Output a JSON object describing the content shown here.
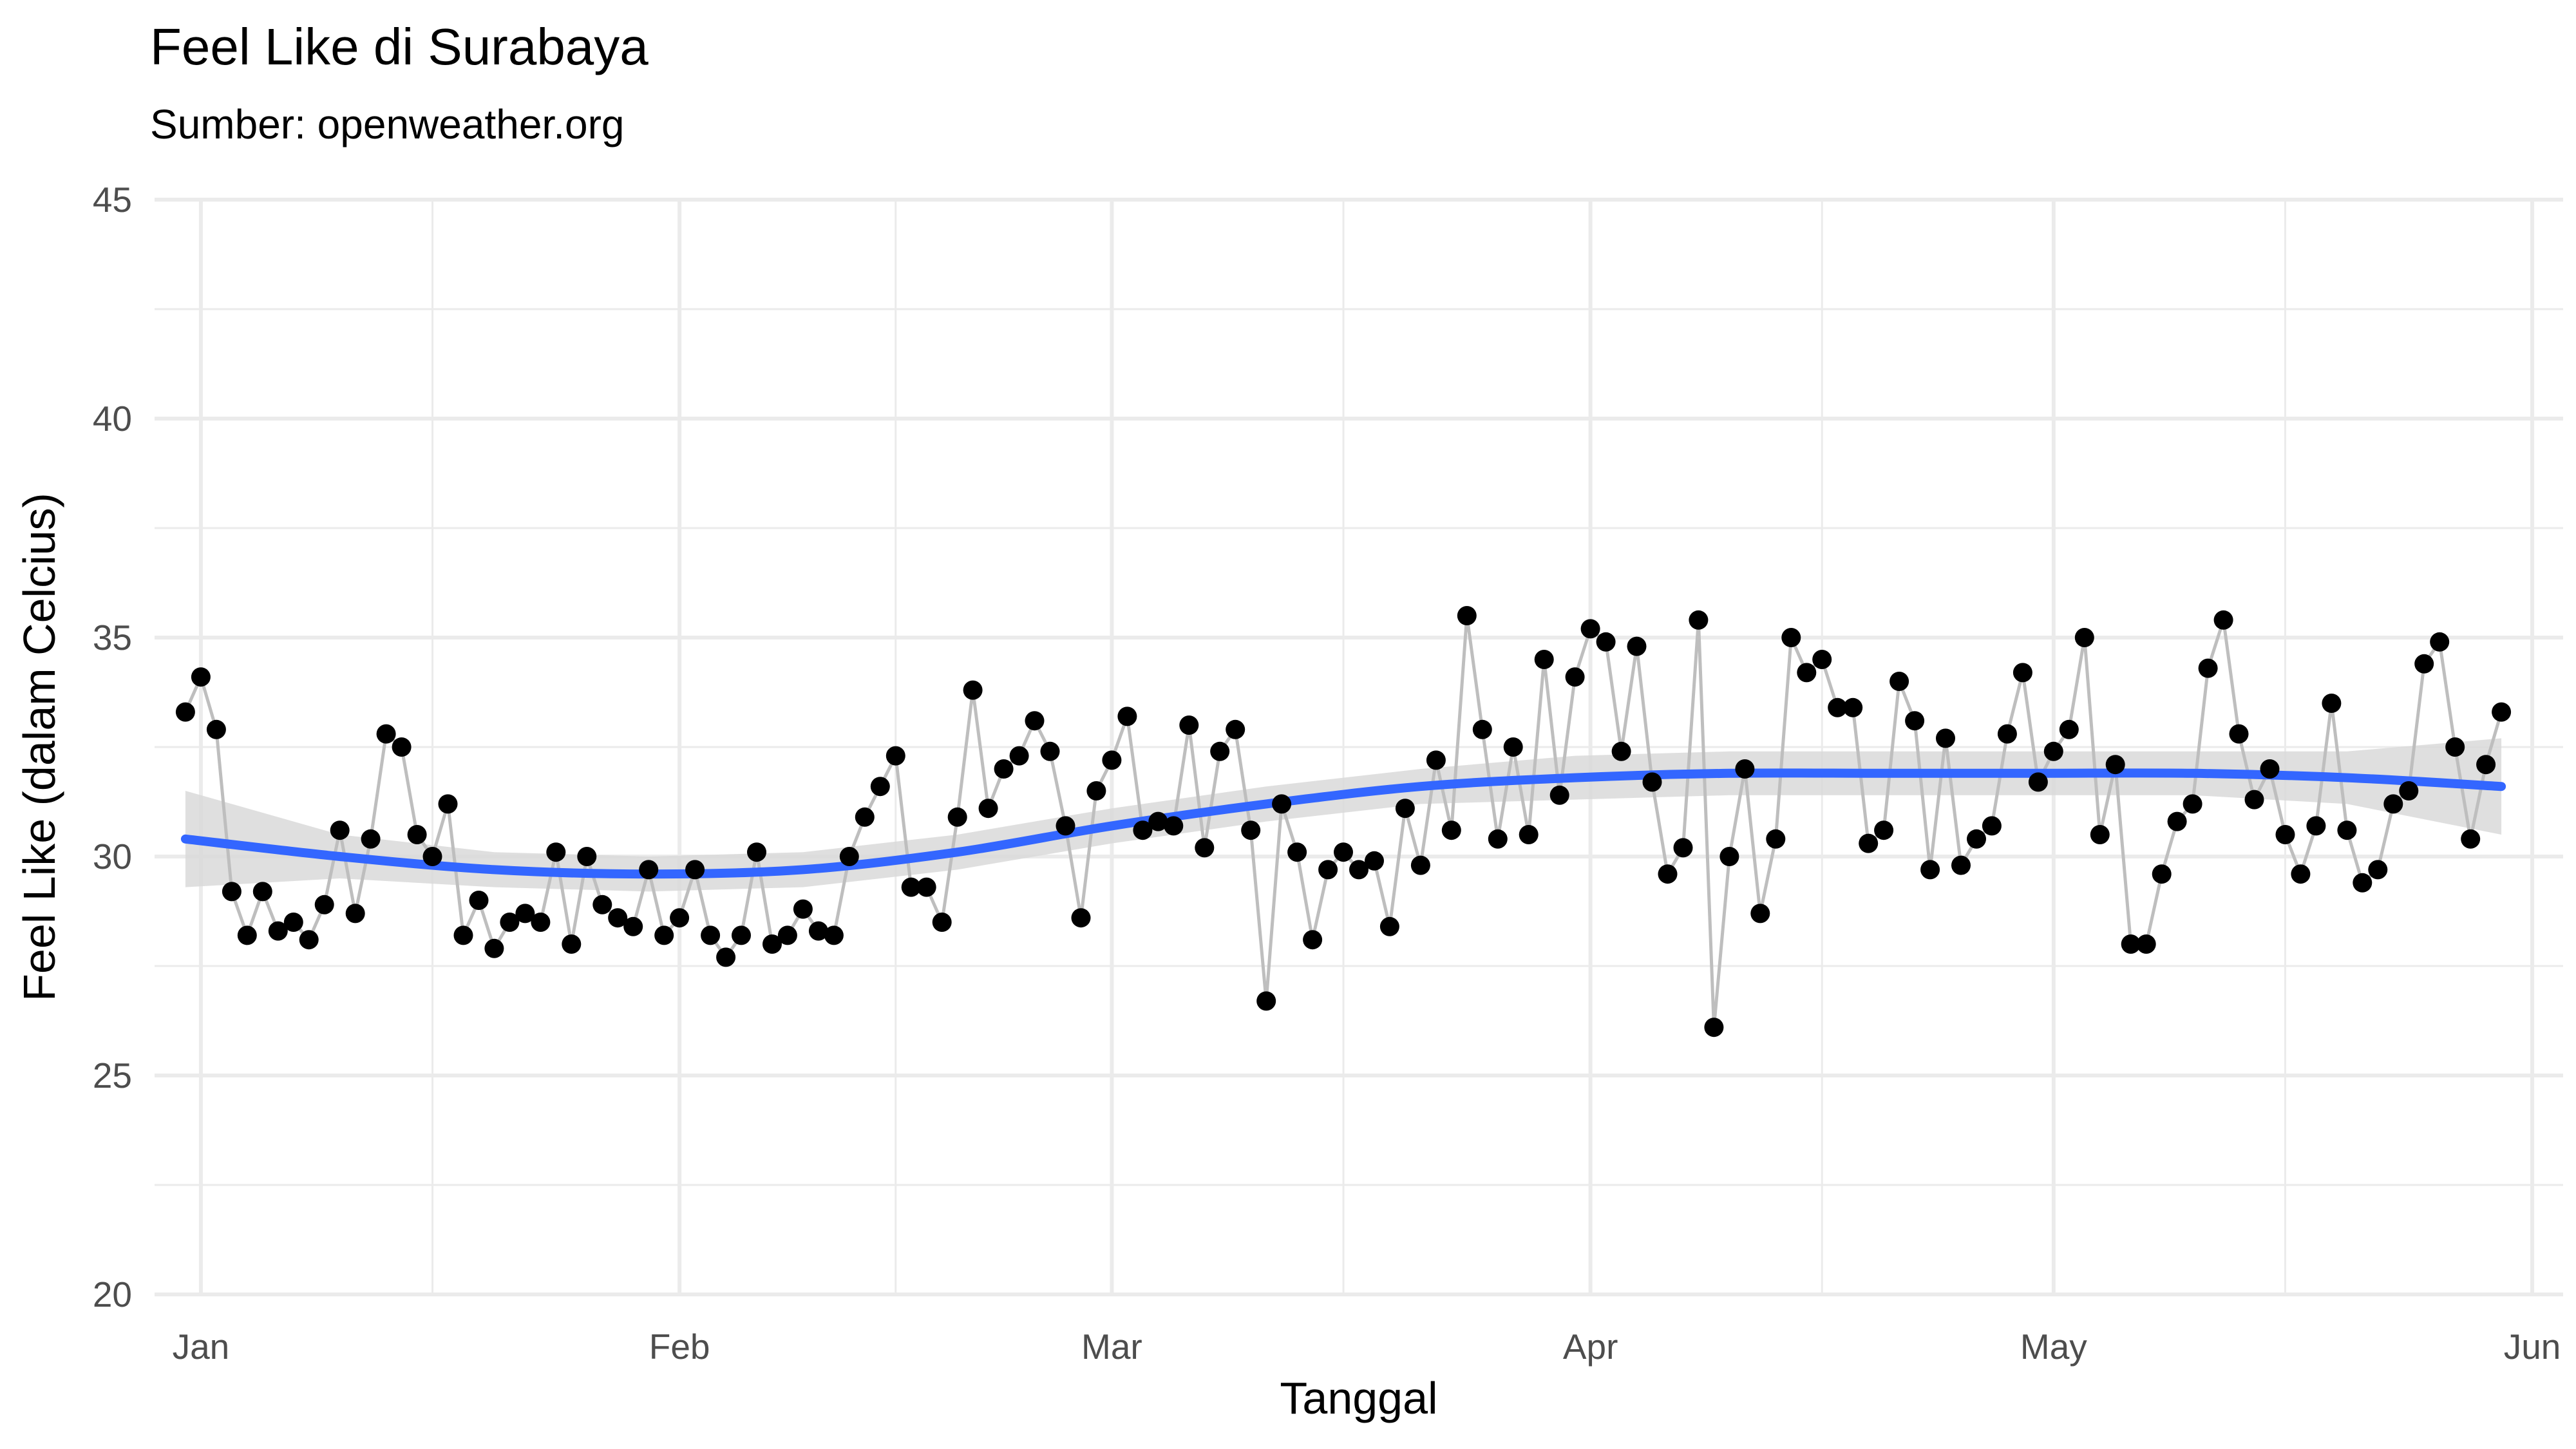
{
  "chart_data": {
    "type": "line",
    "title": "Feel Like di Surabaya",
    "subtitle": "Sumber: openweather.org",
    "xlabel": "Tanggal",
    "ylabel": "Feel Like (dalam Celcius)",
    "ylim": [
      20,
      45
    ],
    "xlim": [
      "2020-12-29",
      "2021-06-03"
    ],
    "x_ticks": [
      {
        "date": "2021-01-01",
        "label": "Jan"
      },
      {
        "date": "2021-02-01",
        "label": "Feb"
      },
      {
        "date": "2021-03-01",
        "label": "Mar"
      },
      {
        "date": "2021-04-01",
        "label": "Apr"
      },
      {
        "date": "2021-05-01",
        "label": "May"
      },
      {
        "date": "2021-06-01",
        "label": "Jun"
      }
    ],
    "x_minor_ticks": [
      "2021-01-16",
      "2021-02-15",
      "2021-03-16",
      "2021-04-16",
      "2021-05-16"
    ],
    "y_ticks": [
      20,
      25,
      30,
      35,
      40,
      45
    ],
    "y_minor_ticks": [
      22.5,
      27.5,
      32.5,
      37.5,
      42.5
    ],
    "grid": true,
    "colors": {
      "points": "#000000",
      "line": "#bebebe",
      "smooth": "#3366ff",
      "band": "#d9d9d9",
      "grid": "#ebebeb",
      "text": "#000000",
      "tick_text": "#4d4d4d"
    },
    "series": [
      {
        "type": "line+points",
        "x": [
          "2020-12-31",
          "2021-01-01",
          "2021-01-02",
          "2021-01-03",
          "2021-01-04",
          "2021-01-05",
          "2021-01-06",
          "2021-01-07",
          "2021-01-08",
          "2021-01-09",
          "2021-01-10",
          "2021-01-11",
          "2021-01-12",
          "2021-01-13",
          "2021-01-14",
          "2021-01-15",
          "2021-01-16",
          "2021-01-17",
          "2021-01-18",
          "2021-01-19",
          "2021-01-20",
          "2021-01-21",
          "2021-01-22",
          "2021-01-23",
          "2021-01-24",
          "2021-01-25",
          "2021-01-26",
          "2021-01-27",
          "2021-01-28",
          "2021-01-29",
          "2021-01-30",
          "2021-01-31",
          "2021-02-01",
          "2021-02-02",
          "2021-02-03",
          "2021-02-04",
          "2021-02-05",
          "2021-02-06",
          "2021-02-07",
          "2021-02-08",
          "2021-02-09",
          "2021-02-10",
          "2021-02-11",
          "2021-02-12",
          "2021-02-13",
          "2021-02-14",
          "2021-02-15",
          "2021-02-16",
          "2021-02-17",
          "2021-02-18",
          "2021-02-19",
          "2021-02-20",
          "2021-02-21",
          "2021-02-22",
          "2021-02-23",
          "2021-02-24",
          "2021-02-25",
          "2021-02-26",
          "2021-02-27",
          "2021-02-28",
          "2021-03-01",
          "2021-03-02",
          "2021-03-03",
          "2021-03-04",
          "2021-03-05",
          "2021-03-06",
          "2021-03-07",
          "2021-03-08",
          "2021-03-09",
          "2021-03-10",
          "2021-03-11",
          "2021-03-12",
          "2021-03-13",
          "2021-03-14",
          "2021-03-15",
          "2021-03-16",
          "2021-03-17",
          "2021-03-18",
          "2021-03-19",
          "2021-03-20",
          "2021-03-21",
          "2021-03-22",
          "2021-03-23",
          "2021-03-24",
          "2021-03-25",
          "2021-03-26",
          "2021-03-27",
          "2021-03-28",
          "2021-03-29",
          "2021-03-30",
          "2021-03-31",
          "2021-04-01",
          "2021-04-02",
          "2021-04-03",
          "2021-04-04",
          "2021-04-05",
          "2021-04-06",
          "2021-04-07",
          "2021-04-08",
          "2021-04-09",
          "2021-04-10",
          "2021-04-11",
          "2021-04-12",
          "2021-04-13",
          "2021-04-14",
          "2021-04-15",
          "2021-04-16",
          "2021-04-17",
          "2021-04-18",
          "2021-04-19",
          "2021-04-20",
          "2021-04-21",
          "2021-04-22",
          "2021-04-23",
          "2021-04-24",
          "2021-04-25",
          "2021-04-26",
          "2021-04-27",
          "2021-04-28",
          "2021-04-29",
          "2021-04-30",
          "2021-05-01",
          "2021-05-02",
          "2021-05-03",
          "2021-05-04",
          "2021-05-05",
          "2021-05-06",
          "2021-05-07",
          "2021-05-08",
          "2021-05-09",
          "2021-05-10",
          "2021-05-11",
          "2021-05-12",
          "2021-05-13",
          "2021-05-14",
          "2021-05-15",
          "2021-05-16",
          "2021-05-17",
          "2021-05-18",
          "2021-05-19",
          "2021-05-20",
          "2021-05-21",
          "2021-05-22",
          "2021-05-23",
          "2021-05-24",
          "2021-05-25",
          "2021-05-26",
          "2021-05-27",
          "2021-05-28",
          "2021-05-29",
          "2021-05-30"
        ],
        "y": [
          33.3,
          34.1,
          32.9,
          29.2,
          28.2,
          29.2,
          28.3,
          28.5,
          28.1,
          28.9,
          30.6,
          28.7,
          30.4,
          32.8,
          32.5,
          30.5,
          30.0,
          31.2,
          28.2,
          29.0,
          27.9,
          28.5,
          28.7,
          28.5,
          30.1,
          28.0,
          30.0,
          28.9,
          28.6,
          28.4,
          29.7,
          28.2,
          28.6,
          29.7,
          28.2,
          27.7,
          28.2,
          30.1,
          28.0,
          28.2,
          28.8,
          28.3,
          28.2,
          30.0,
          30.9,
          31.6,
          32.3,
          29.3,
          29.3,
          28.5,
          30.9,
          33.8,
          31.1,
          32.0,
          32.3,
          33.1,
          32.4,
          30.7,
          28.6,
          31.5,
          32.2,
          33.2,
          30.6,
          30.8,
          30.7,
          33.0,
          30.2,
          32.4,
          32.9,
          30.6,
          26.7,
          31.2,
          30.1,
          28.1,
          29.7,
          30.1,
          29.7,
          29.9,
          28.4,
          31.1,
          29.8,
          32.2,
          30.6,
          35.5,
          32.9,
          30.4,
          32.5,
          30.5,
          34.5,
          31.4,
          34.1,
          35.2,
          34.9,
          32.4,
          34.8,
          31.7,
          29.6,
          30.2,
          35.4,
          26.1,
          30.0,
          32.0,
          28.7,
          30.4,
          35.0,
          34.2,
          34.5,
          33.4,
          33.4,
          30.3,
          30.6,
          34.0,
          33.1,
          29.7,
          32.7,
          29.8,
          30.4,
          30.7,
          32.8,
          34.2,
          31.7,
          32.4,
          32.9,
          35.0,
          30.5,
          32.1,
          28.0,
          28.0,
          29.6,
          30.8,
          31.2,
          34.3,
          35.4,
          32.8,
          31.3,
          32.0,
          30.5,
          29.6,
          30.7,
          33.5,
          30.6,
          29.4,
          29.7,
          31.2,
          31.5,
          34.4,
          34.9,
          32.5,
          30.4,
          32.1,
          33.3
        ]
      },
      {
        "type": "smooth",
        "x": [
          "2020-12-31",
          "2021-01-10",
          "2021-01-20",
          "2021-01-30",
          "2021-02-09",
          "2021-02-19",
          "2021-03-01",
          "2021-03-11",
          "2021-03-21",
          "2021-03-31",
          "2021-04-10",
          "2021-04-20",
          "2021-04-30",
          "2021-05-10",
          "2021-05-20",
          "2021-05-30"
        ],
        "y": [
          30.4,
          30.0,
          29.7,
          29.6,
          29.7,
          30.1,
          30.7,
          31.2,
          31.6,
          31.8,
          31.9,
          31.9,
          31.9,
          31.9,
          31.8,
          31.6
        ],
        "ci_lower": [
          29.3,
          29.5,
          29.3,
          29.2,
          29.3,
          29.7,
          30.3,
          30.8,
          31.2,
          31.3,
          31.4,
          31.4,
          31.4,
          31.4,
          31.2,
          30.5
        ],
        "ci_upper": [
          31.5,
          30.5,
          30.1,
          30.0,
          30.1,
          30.5,
          31.1,
          31.6,
          32.0,
          32.3,
          32.4,
          32.4,
          32.4,
          32.4,
          32.4,
          32.7
        ]
      }
    ]
  }
}
